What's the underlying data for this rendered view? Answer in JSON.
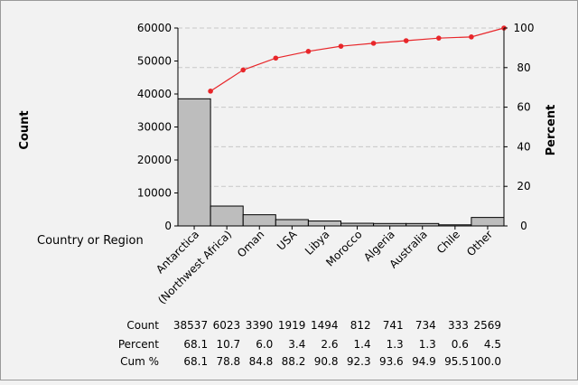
{
  "chart_data": {
    "type": "bar",
    "subtype": "pareto",
    "categories": [
      "Antarctica",
      "(Northwest Africa)",
      "Oman",
      "USA",
      "Libya",
      "Morocco",
      "Algeria",
      "Australia",
      "Chile",
      "Other"
    ],
    "series": [
      {
        "name": "Count",
        "type": "bar",
        "axis": "left",
        "values": [
          38537,
          6023,
          3390,
          1919,
          1494,
          812,
          741,
          734,
          333,
          2569
        ]
      },
      {
        "name": "Cum %",
        "type": "line",
        "axis": "right",
        "values": [
          68.1,
          78.8,
          84.8,
          88.2,
          90.8,
          92.3,
          93.6,
          94.9,
          95.5,
          100.0
        ]
      }
    ],
    "ylabel": "Count",
    "y2label": "Percent",
    "xlabel": "Country or Region",
    "ylim": [
      0,
      60000
    ],
    "y2lim": [
      0,
      100
    ],
    "yticks": [
      "0",
      "10000",
      "20000",
      "30000",
      "40000",
      "50000",
      "60000"
    ],
    "y2ticks": [
      "0",
      "20",
      "40",
      "60",
      "80",
      "100"
    ],
    "grid": "dashed horizontal at right-axis ticks",
    "colors": {
      "bar": "#bdbdbd",
      "bar_edge": "#000000",
      "line": "#e8262a",
      "grid": "#c8c8c8",
      "background": "#f2f2f2"
    },
    "table": {
      "rows": [
        {
          "label": "Count",
          "values": [
            "38537",
            "6023",
            "3390",
            "1919",
            "1494",
            "812",
            "741",
            "734",
            "333",
            "2569"
          ]
        },
        {
          "label": "Percent",
          "values": [
            "68.1",
            "10.7",
            "6.0",
            "3.4",
            "2.6",
            "1.4",
            "1.3",
            "1.3",
            "0.6",
            "4.5"
          ]
        },
        {
          "label": "Cum %",
          "values": [
            "68.1",
            "78.8",
            "84.8",
            "88.2",
            "90.8",
            "92.3",
            "93.6",
            "94.9",
            "95.5",
            "100.0"
          ]
        }
      ]
    }
  }
}
